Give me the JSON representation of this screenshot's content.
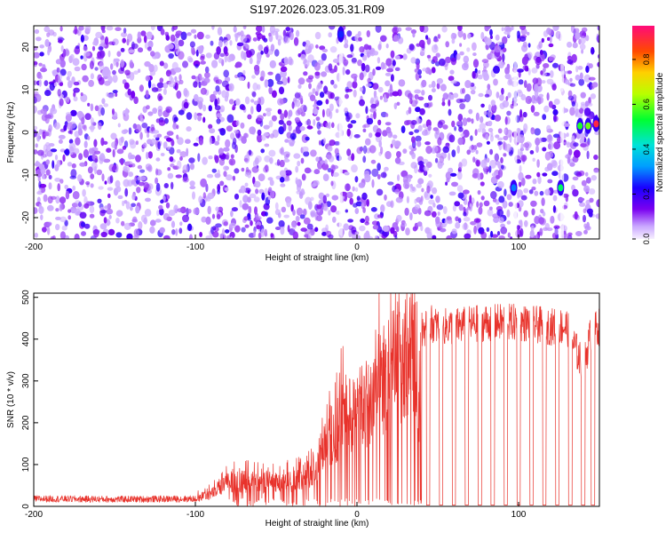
{
  "title": "S197.2026.023.05.31.R09",
  "chart_data": [
    {
      "type": "heatmap",
      "title": "S197.2026.023.05.31.R09",
      "xlabel": "Height of straight line (km)",
      "ylabel": "Frequency (Hz)",
      "xlim": [
        -200,
        150
      ],
      "ylim": [
        -25,
        25
      ],
      "xticks": [
        -200,
        -100,
        0,
        100
      ],
      "yticks": [
        -20,
        -10,
        0,
        10,
        20
      ],
      "colorbar": {
        "label": "Normalized spectral amplitude",
        "range": [
          0,
          0.95
        ],
        "ticks": [
          0.0,
          0.2,
          0.4,
          0.6,
          0.8
        ]
      },
      "background_amplitude": [
        0.05,
        0.2
      ],
      "features": [
        {
          "x": -10,
          "y": 23,
          "amplitude": 0.25
        },
        {
          "x": 97,
          "y": -13,
          "amplitude": 0.3
        },
        {
          "x": 126,
          "y": -13,
          "amplitude": 0.5
        },
        {
          "x": 138,
          "y": 1.5,
          "amplitude": 0.55
        },
        {
          "x": 143,
          "y": 1.5,
          "amplitude": 0.6
        },
        {
          "x": 148,
          "y": 2,
          "amplitude": 0.9
        }
      ]
    },
    {
      "type": "line",
      "xlabel": "Height of straight line (km)",
      "ylabel": "SNR (10 * v/v)",
      "xlim": [
        -200,
        150
      ],
      "ylim": [
        0,
        510
      ],
      "xticks": [
        -200,
        -100,
        0,
        100
      ],
      "yticks": [
        0,
        100,
        200,
        300,
        400,
        500
      ],
      "color": "#e8322b",
      "series": [
        {
          "name": "SNR",
          "x": [
            -200,
            -150,
            -100,
            -90,
            -80,
            -70,
            -60,
            -50,
            -40,
            -30,
            -25,
            -20,
            -10,
            0,
            10,
            20,
            30,
            35,
            38,
            40,
            45,
            50,
            60,
            80,
            100,
            120,
            130,
            140,
            145,
            150
          ],
          "y": [
            18,
            17,
            18,
            30,
            55,
            60,
            55,
            55,
            60,
            80,
            90,
            150,
            200,
            220,
            270,
            320,
            360,
            380,
            200,
            420,
            440,
            430,
            430,
            440,
            440,
            430,
            430,
            330,
            420,
            430
          ]
        }
      ],
      "dropouts": [
        44,
        52,
        60,
        68,
        76,
        84,
        92,
        100,
        108,
        116,
        124,
        132,
        140,
        146
      ]
    }
  ]
}
